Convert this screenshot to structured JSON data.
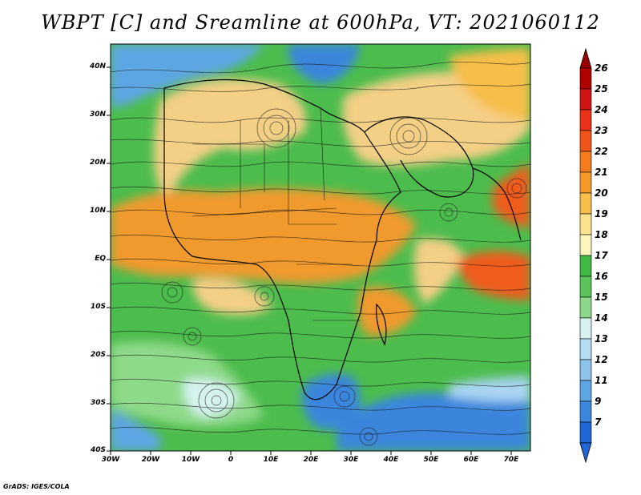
{
  "title": "WBPT [C] and Sreamline at 600hPa, VT: 2021060112",
  "credit": "GrADS: IGES/COLA",
  "lat_labels": [
    "40N",
    "30N",
    "20N",
    "10N",
    "EQ",
    "10S",
    "20S",
    "30S",
    "40S"
  ],
  "lon_labels": [
    "30W",
    "20W",
    "10W",
    "0",
    "10E",
    "20E",
    "30E",
    "40E",
    "50E",
    "60E",
    "70E"
  ],
  "colorbar": {
    "labels": [
      "26",
      "25",
      "24",
      "23",
      "22",
      "21",
      "20",
      "19",
      "18",
      "17",
      "16",
      "15",
      "14",
      "13",
      "12",
      "11",
      "9",
      "7"
    ],
    "colors": [
      "#b00000",
      "#d21414",
      "#ea3218",
      "#f2551a",
      "#f57c1c",
      "#f59a28",
      "#f7be4a",
      "#fae38c",
      "#fff6be",
      "#3fb844",
      "#5ac45a",
      "#8bd88a",
      "#d6f3f0",
      "#b4dcf2",
      "#8cc4ec",
      "#5da6e4",
      "#3c88de",
      "#1f66d6"
    ],
    "top_arrow_color": "#9a0000",
    "bottom_arrow_color": "#1f66d6"
  },
  "map_colors": {
    "tan": "#f4cf86",
    "orange": "#f09a2e",
    "green": "#4cbc4c",
    "light_green": "#8fd98a",
    "blue": "#3a86dc",
    "light_blue": "#a9d4f2",
    "red_orange": "#ef5b1c"
  }
}
